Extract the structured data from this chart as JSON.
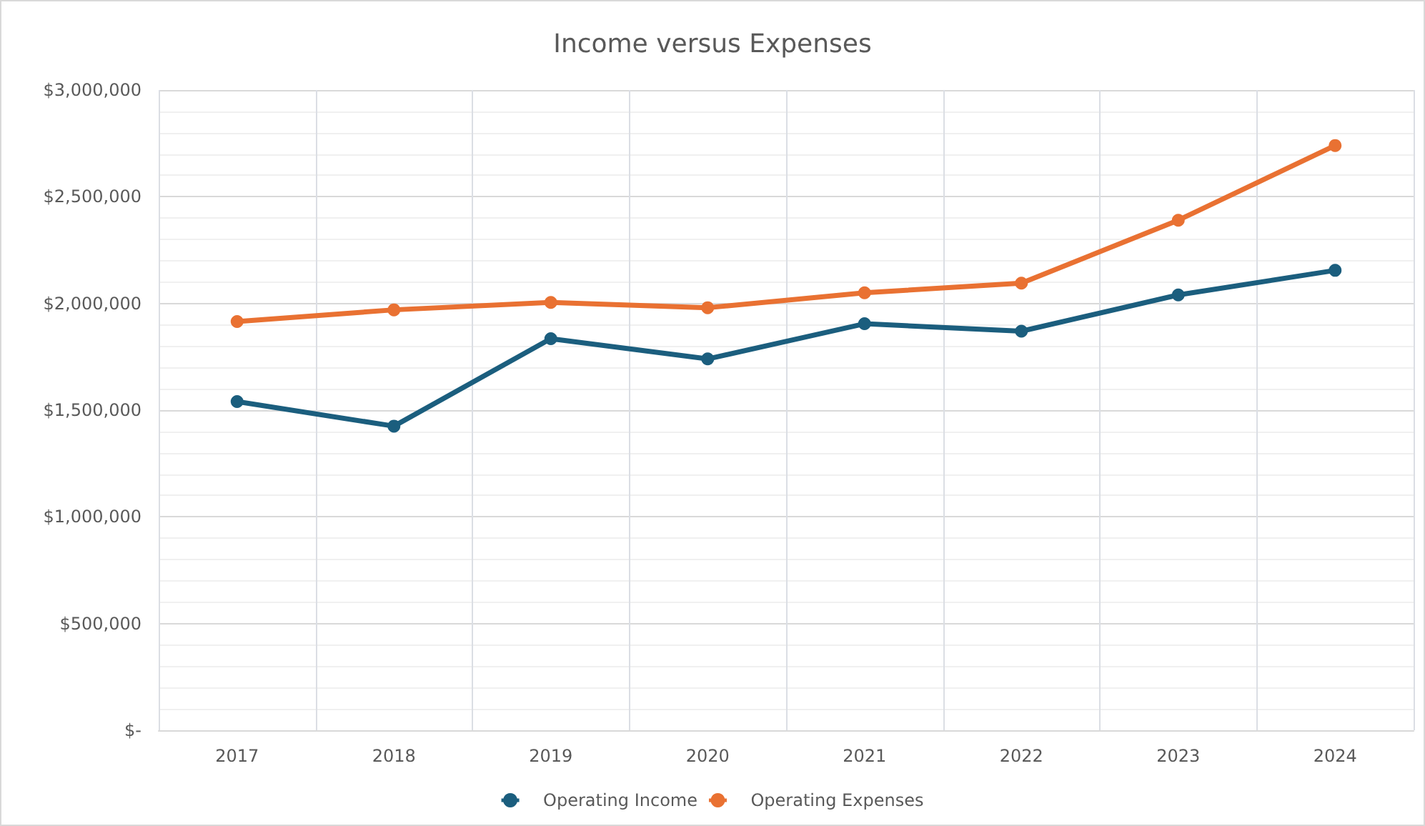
{
  "chart_data": {
    "type": "line",
    "title": "Income versus Expenses",
    "categories": [
      "2017",
      "2018",
      "2019",
      "2020",
      "2021",
      "2022",
      "2023",
      "2024"
    ],
    "series": [
      {
        "name": "Operating Income",
        "color": "#1b5e7e",
        "values": [
          1540000,
          1425000,
          1835000,
          1740000,
          1905000,
          1870000,
          2040000,
          2155000
        ]
      },
      {
        "name": "Operating Expenses",
        "color": "#e97132",
        "values": [
          1915000,
          1970000,
          2005000,
          1980000,
          2050000,
          2095000,
          2390000,
          2740000
        ]
      }
    ],
    "ylim": [
      0,
      3000000
    ],
    "yticks": [
      {
        "value": 0,
        "label": "$-"
      },
      {
        "value": 500000,
        "label": "$500,000"
      },
      {
        "value": 1000000,
        "label": "$1,000,000"
      },
      {
        "value": 1500000,
        "label": "$1,500,000"
      },
      {
        "value": 2000000,
        "label": "$2,000,000"
      },
      {
        "value": 2500000,
        "label": "$2,500,000"
      },
      {
        "value": 3000000,
        "label": "$3,000,000"
      }
    ],
    "grid": true,
    "legend": "bottom",
    "marker": "circle",
    "line_style": "solid"
  }
}
